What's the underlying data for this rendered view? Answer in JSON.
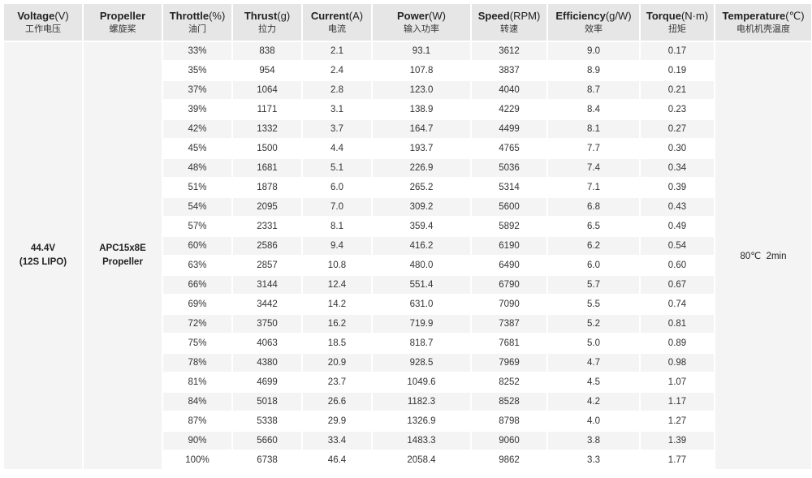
{
  "headers": [
    {
      "en": "Voltage",
      "unit": "(V)",
      "cn": "工作电压"
    },
    {
      "en": "Propeller",
      "unit": "",
      "cn": "螺旋桨"
    },
    {
      "en": "Throttle",
      "unit": "(%)",
      "cn": "油门"
    },
    {
      "en": "Thrust",
      "unit": "(g)",
      "cn": "拉力"
    },
    {
      "en": "Current",
      "unit": "(A)",
      "cn": "电流"
    },
    {
      "en": "Power",
      "unit": "(W)",
      "cn": "输入功率"
    },
    {
      "en": "Speed",
      "unit": "(RPM)",
      "cn": "转速"
    },
    {
      "en": "Efficiency",
      "unit": "(g/W)",
      "cn": "效率"
    },
    {
      "en": "Torque",
      "unit": "(N·m)",
      "cn": "扭矩"
    },
    {
      "en": "Temperature",
      "unit": "(℃)",
      "cn": "电机机壳温度"
    }
  ],
  "voltage": {
    "line1": "44.4V",
    "line2": "(12S LIPO)"
  },
  "propeller": {
    "line1": "APC15x8E",
    "line2": "Propeller"
  },
  "temperature": "80℃  2min",
  "rows": [
    [
      "33%",
      "838",
      "2.1",
      "93.1",
      "3612",
      "9.0",
      "0.17"
    ],
    [
      "35%",
      "954",
      "2.4",
      "107.8",
      "3837",
      "8.9",
      "0.19"
    ],
    [
      "37%",
      "1064",
      "2.8",
      "123.0",
      "4040",
      "8.7",
      "0.21"
    ],
    [
      "39%",
      "1171",
      "3.1",
      "138.9",
      "4229",
      "8.4",
      "0.23"
    ],
    [
      "42%",
      "1332",
      "3.7",
      "164.7",
      "4499",
      "8.1",
      "0.27"
    ],
    [
      "45%",
      "1500",
      "4.4",
      "193.7",
      "4765",
      "7.7",
      "0.30"
    ],
    [
      "48%",
      "1681",
      "5.1",
      "226.9",
      "5036",
      "7.4",
      "0.34"
    ],
    [
      "51%",
      "1878",
      "6.0",
      "265.2",
      "5314",
      "7.1",
      "0.39"
    ],
    [
      "54%",
      "2095",
      "7.0",
      "309.2",
      "5600",
      "6.8",
      "0.43"
    ],
    [
      "57%",
      "2331",
      "8.1",
      "359.4",
      "5892",
      "6.5",
      "0.49"
    ],
    [
      "60%",
      "2586",
      "9.4",
      "416.2",
      "6190",
      "6.2",
      "0.54"
    ],
    [
      "63%",
      "2857",
      "10.8",
      "480.0",
      "6490",
      "6.0",
      "0.60"
    ],
    [
      "66%",
      "3144",
      "12.4",
      "551.4",
      "6790",
      "5.7",
      "0.67"
    ],
    [
      "69%",
      "3442",
      "14.2",
      "631.0",
      "7090",
      "5.5",
      "0.74"
    ],
    [
      "72%",
      "3750",
      "16.2",
      "719.9",
      "7387",
      "5.2",
      "0.81"
    ],
    [
      "75%",
      "4063",
      "18.5",
      "818.7",
      "7681",
      "5.0",
      "0.89"
    ],
    [
      "78%",
      "4380",
      "20.9",
      "928.5",
      "7969",
      "4.7",
      "0.98"
    ],
    [
      "81%",
      "4699",
      "23.7",
      "1049.6",
      "8252",
      "4.5",
      "1.07"
    ],
    [
      "84%",
      "5018",
      "26.6",
      "1182.3",
      "8528",
      "4.2",
      "1.17"
    ],
    [
      "87%",
      "5338",
      "29.9",
      "1326.9",
      "8798",
      "4.0",
      "1.27"
    ],
    [
      "90%",
      "5660",
      "33.4",
      "1483.3",
      "9060",
      "3.8",
      "1.39"
    ],
    [
      "100%",
      "6738",
      "46.4",
      "2058.4",
      "9862",
      "3.3",
      "1.77"
    ]
  ]
}
